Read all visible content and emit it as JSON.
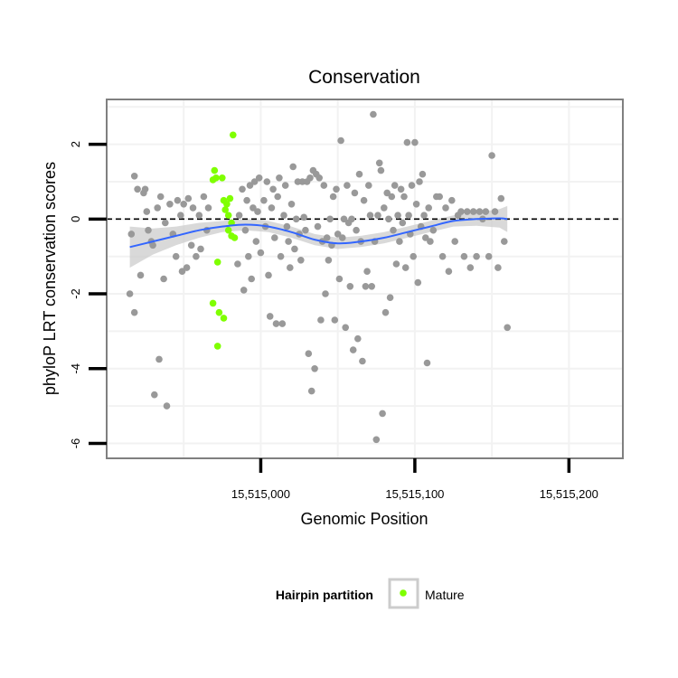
{
  "chart_data": {
    "type": "scatter",
    "title": "Conservation",
    "xlabel": "Genomic Position",
    "ylabel": "phyloP LRT conservation scores",
    "xlim": [
      15514900,
      15515235
    ],
    "ylim": [
      -6.4,
      3.2
    ],
    "x_ticks": [
      15515000,
      15515100,
      15515200
    ],
    "x_tick_labels": [
      "15,515,000",
      "15,515,100",
      "15,515,200"
    ],
    "y_ticks": [
      -6,
      -4,
      -2,
      0,
      2
    ],
    "y_tick_labels": [
      "-6",
      "-4",
      "-2",
      "0",
      "2"
    ],
    "grid": true,
    "reference_line": {
      "y": 0,
      "style": "dashed",
      "color": "#000000"
    },
    "legend": {
      "title": "Hairpin partition",
      "position": "bottom",
      "entries": [
        "Mature"
      ]
    },
    "colors": {
      "other": "#999999",
      "mature": "#7FFF00",
      "smooth": "#3366FF",
      "ribbon": "#CCCCCC",
      "panel_border": "#808080"
    },
    "series": [
      {
        "name": "Mature",
        "color": "#7FFF00",
        "points": [
          [
            15514970,
            1.3
          ],
          [
            15514971,
            1.1
          ],
          [
            15514969,
            1.05
          ],
          [
            15514975,
            1.1
          ],
          [
            15514982,
            2.25
          ],
          [
            15514976,
            0.5
          ],
          [
            15514978,
            0.4
          ],
          [
            15514980,
            0.55
          ],
          [
            15514977,
            0.25
          ],
          [
            15514979,
            0.1
          ],
          [
            15514981,
            -0.1
          ],
          [
            15514979,
            -0.3
          ],
          [
            15514981,
            -0.45
          ],
          [
            15514983,
            -0.5
          ],
          [
            15514972,
            -1.15
          ],
          [
            15514969,
            -2.25
          ],
          [
            15514973,
            -2.5
          ],
          [
            15514976,
            -2.65
          ],
          [
            15514972,
            -3.4
          ]
        ]
      },
      {
        "name": "",
        "color": "#999999",
        "points": [
          [
            15514915,
            -2.0
          ],
          [
            15514918,
            -2.5
          ],
          [
            15514916,
            -0.4
          ],
          [
            15514918,
            1.15
          ],
          [
            15514920,
            0.8
          ],
          [
            15514922,
            -1.5
          ],
          [
            15514924,
            0.7
          ],
          [
            15514925,
            0.8
          ],
          [
            15514926,
            0.2
          ],
          [
            15514927,
            -0.3
          ],
          [
            15514929,
            -0.6
          ],
          [
            15514930,
            -0.7
          ],
          [
            15514931,
            -4.7
          ],
          [
            15514933,
            0.3
          ],
          [
            15514934,
            -3.75
          ],
          [
            15514935,
            0.6
          ],
          [
            15514937,
            -1.6
          ],
          [
            15514938,
            -0.1
          ],
          [
            15514939,
            -5.0
          ],
          [
            15514941,
            0.4
          ],
          [
            15514943,
            -0.4
          ],
          [
            15514945,
            -1.0
          ],
          [
            15514946,
            0.5
          ],
          [
            15514948,
            0.1
          ],
          [
            15514949,
            -1.4
          ],
          [
            15514950,
            0.4
          ],
          [
            15514952,
            -1.3
          ],
          [
            15514953,
            0.55
          ],
          [
            15514955,
            -0.7
          ],
          [
            15514956,
            0.3
          ],
          [
            15514958,
            -1.0
          ],
          [
            15514960,
            0.1
          ],
          [
            15514961,
            -0.8
          ],
          [
            15514963,
            0.6
          ],
          [
            15514965,
            -0.3
          ],
          [
            15514966,
            0.3
          ],
          [
            15514985,
            -1.2
          ],
          [
            15514986,
            0.1
          ],
          [
            15514988,
            0.8
          ],
          [
            15514989,
            -1.9
          ],
          [
            15514990,
            -0.3
          ],
          [
            15514991,
            0.5
          ],
          [
            15514992,
            -1.0
          ],
          [
            15514993,
            0.9
          ],
          [
            15514994,
            -1.6
          ],
          [
            15514995,
            0.3
          ],
          [
            15514996,
            1.0
          ],
          [
            15514997,
            -0.6
          ],
          [
            15514998,
            0.2
          ],
          [
            15514999,
            1.1
          ],
          [
            15515000,
            -0.9
          ],
          [
            15515002,
            0.5
          ],
          [
            15515003,
            -0.2
          ],
          [
            15515004,
            1.0
          ],
          [
            15515005,
            -1.5
          ],
          [
            15515006,
            -2.6
          ],
          [
            15515007,
            0.3
          ],
          [
            15515008,
            0.8
          ],
          [
            15515009,
            -0.5
          ],
          [
            15515010,
            -2.8
          ],
          [
            15515011,
            0.6
          ],
          [
            15515012,
            1.1
          ],
          [
            15515013,
            -1.0
          ],
          [
            15515014,
            -2.8
          ],
          [
            15515015,
            0.1
          ],
          [
            15515016,
            0.9
          ],
          [
            15515017,
            -0.2
          ],
          [
            15515018,
            -0.6
          ],
          [
            15515019,
            -1.3
          ],
          [
            15515020,
            0.4
          ],
          [
            15515021,
            1.4
          ],
          [
            15515022,
            -0.8
          ],
          [
            15515023,
            0.0
          ],
          [
            15515024,
            1.0
          ],
          [
            15515025,
            -0.4
          ],
          [
            15515026,
            -1.1
          ],
          [
            15515027,
            1.0
          ],
          [
            15515028,
            0.05
          ],
          [
            15515029,
            -0.3
          ],
          [
            15515030,
            1.0
          ],
          [
            15515031,
            -3.6
          ],
          [
            15515032,
            1.1
          ],
          [
            15515033,
            -4.6
          ],
          [
            15515034,
            1.3
          ],
          [
            15515035,
            -4.0
          ],
          [
            15515036,
            1.2
          ],
          [
            15515037,
            -0.2
          ],
          [
            15515038,
            1.1
          ],
          [
            15515039,
            -2.7
          ],
          [
            15515040,
            -0.6
          ],
          [
            15515041,
            0.9
          ],
          [
            15515042,
            -2.0
          ],
          [
            15515043,
            -0.5
          ],
          [
            15515044,
            -1.1
          ],
          [
            15515045,
            0.0
          ],
          [
            15515046,
            -0.7
          ],
          [
            15515047,
            0.6
          ],
          [
            15515048,
            -2.7
          ],
          [
            15515049,
            0.8
          ],
          [
            15515050,
            -0.4
          ],
          [
            15515051,
            -1.6
          ],
          [
            15515052,
            2.1
          ],
          [
            15515053,
            -0.5
          ],
          [
            15515054,
            0.0
          ],
          [
            15515055,
            -2.9
          ],
          [
            15515056,
            0.9
          ],
          [
            15515057,
            -0.1
          ],
          [
            15515058,
            -1.8
          ],
          [
            15515059,
            0.0
          ],
          [
            15515060,
            -3.5
          ],
          [
            15515061,
            0.7
          ],
          [
            15515062,
            -0.3
          ],
          [
            15515063,
            -3.2
          ],
          [
            15515064,
            1.2
          ],
          [
            15515065,
            -0.6
          ],
          [
            15515066,
            -3.8
          ],
          [
            15515067,
            0.5
          ],
          [
            15515068,
            -1.8
          ],
          [
            15515069,
            -1.4
          ],
          [
            15515070,
            0.9
          ],
          [
            15515071,
            0.1
          ],
          [
            15515072,
            -1.8
          ],
          [
            15515073,
            2.8
          ],
          [
            15515074,
            -0.6
          ],
          [
            15515075,
            -5.9
          ],
          [
            15515076,
            0.1
          ],
          [
            15515077,
            1.5
          ],
          [
            15515078,
            1.3
          ],
          [
            15515079,
            -5.2
          ],
          [
            15515080,
            0.3
          ],
          [
            15515081,
            -2.5
          ],
          [
            15515082,
            0.7
          ],
          [
            15515083,
            0.0
          ],
          [
            15515084,
            -2.1
          ],
          [
            15515085,
            0.6
          ],
          [
            15515086,
            -0.3
          ],
          [
            15515087,
            0.9
          ],
          [
            15515088,
            -1.2
          ],
          [
            15515089,
            0.1
          ],
          [
            15515090,
            -0.6
          ],
          [
            15515091,
            0.8
          ],
          [
            15515092,
            -0.1
          ],
          [
            15515093,
            0.6
          ],
          [
            15515094,
            -1.3
          ],
          [
            15515095,
            2.05
          ],
          [
            15515096,
            0.1
          ],
          [
            15515097,
            -0.4
          ],
          [
            15515098,
            0.9
          ],
          [
            15515099,
            -1.0
          ],
          [
            15515100,
            2.05
          ],
          [
            15515101,
            0.4
          ],
          [
            15515102,
            -1.7
          ],
          [
            15515103,
            1.0
          ],
          [
            15515104,
            -0.2
          ],
          [
            15515105,
            1.2
          ],
          [
            15515106,
            0.1
          ],
          [
            15515107,
            -0.5
          ],
          [
            15515108,
            -3.85
          ],
          [
            15515109,
            0.3
          ],
          [
            15515110,
            -0.6
          ],
          [
            15515112,
            -0.3
          ],
          [
            15515114,
            0.6
          ],
          [
            15515116,
            0.6
          ],
          [
            15515118,
            -1.0
          ],
          [
            15515120,
            0.3
          ],
          [
            15515122,
            -1.4
          ],
          [
            15515124,
            0.5
          ],
          [
            15515126,
            -0.6
          ],
          [
            15515128,
            0.1
          ],
          [
            15515130,
            0.2
          ],
          [
            15515132,
            -1.0
          ],
          [
            15515134,
            0.2
          ],
          [
            15515136,
            -1.3
          ],
          [
            15515138,
            0.2
          ],
          [
            15515140,
            -1.0
          ],
          [
            15515142,
            0.2
          ],
          [
            15515144,
            0.0
          ],
          [
            15515146,
            0.2
          ],
          [
            15515148,
            -1.0
          ],
          [
            15515150,
            1.7
          ],
          [
            15515152,
            0.2
          ],
          [
            15515154,
            -1.3
          ],
          [
            15515156,
            0.55
          ],
          [
            15515158,
            -0.6
          ],
          [
            15515160,
            -2.9
          ]
        ]
      }
    ],
    "smooth_fit": {
      "x": [
        15514915,
        15514930,
        15514945,
        15514960,
        15514975,
        15514990,
        15515005,
        15515020,
        15515035,
        15515050,
        15515065,
        15515080,
        15515095,
        15515110,
        15515125,
        15515140,
        15515155,
        15515160
      ],
      "y": [
        -0.75,
        -0.6,
        -0.45,
        -0.3,
        -0.2,
        -0.15,
        -0.2,
        -0.35,
        -0.55,
        -0.65,
        -0.6,
        -0.5,
        -0.35,
        -0.2,
        -0.05,
        0.0,
        0.02,
        0.0
      ],
      "ci_half_width": [
        0.55,
        0.35,
        0.25,
        0.2,
        0.15,
        0.15,
        0.15,
        0.15,
        0.15,
        0.15,
        0.15,
        0.15,
        0.15,
        0.15,
        0.15,
        0.18,
        0.25,
        0.35
      ]
    }
  }
}
